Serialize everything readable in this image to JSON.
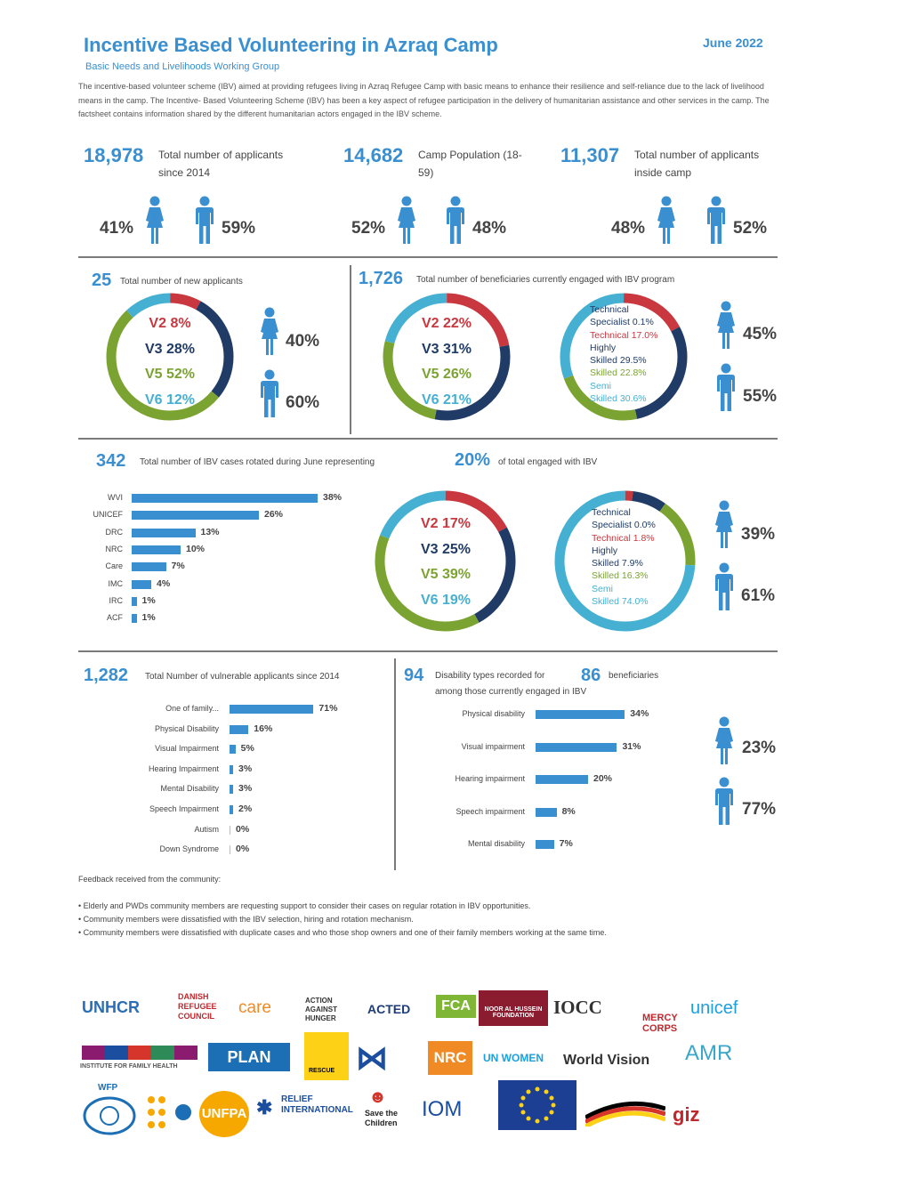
{
  "header": {
    "title": "Incentive Based Volunteering in Azraq Camp",
    "date": "June 2022",
    "subtitle": "Basic Needs and Livelihoods Working Group",
    "intro": "The incentive-based volunteer scheme (IBV) aimed at providing refugees living in Azraq Refugee Camp with basic means to enhance their resilience and self-reliance due to the lack of livelihood means in the camp. The Incentive- Based Volunteering Scheme (IBV) has been a key aspect of refugee participation in the delivery of humanitarian assistance and other services in the camp. The factsheet contains information shared by the different humanitarian actors engaged in the IBV scheme."
  },
  "stats": [
    {
      "value": "18,978",
      "label": "Total number of applicants since 2014",
      "female": "41%",
      "male": "59%"
    },
    {
      "value": "14,682",
      "label": "Camp Population (18-59)",
      "female": "52%",
      "male": "48%"
    },
    {
      "value": "11,307",
      "label": "Total number of applicants inside camp",
      "female": "48%",
      "male": "52%"
    }
  ],
  "new_applicants": {
    "value": "25",
    "label": "Total number of new applicants",
    "v2": "V2 8%",
    "v3": "V3 28%",
    "v5": "V5 52%",
    "v6": "V6 12%",
    "female": "40%",
    "male": "60%"
  },
  "beneficiaries": {
    "value": "1,726",
    "label": "Total number of beneficiaries currently engaged with IBV program",
    "v2": "V2 22%",
    "v3": "V3 31%",
    "v5": "V5 26%",
    "v6": "V6 21%",
    "skills": [
      "Technical",
      "Specialist 0.1%",
      "Technical 17.0%",
      "Highly",
      "Skilled 29.5%",
      "Skilled 22.8%",
      "Semi",
      "Skilled 30.6%"
    ],
    "female": "45%",
    "male": "55%"
  },
  "rotated": {
    "value": "342",
    "label": "Total number of IBV cases rotated during June representing",
    "pct": "20%",
    "pct_label": "of total engaged with IBV",
    "v2": "V2 17%",
    "v3": "V3 25%",
    "v5": "V5 39%",
    "v6": "V6 19%",
    "skills": [
      "Technical",
      "Specialist 0.0%",
      "Technical 1.8%",
      "Highly",
      "Skilled 7.9%",
      "Skilled 16.3%",
      "Semi",
      "Skilled 74.0%"
    ],
    "female": "39%",
    "male": "61%",
    "bars": [
      {
        "label": "WVI",
        "value": 38,
        "text": "38%"
      },
      {
        "label": "UNICEF",
        "value": 26,
        "text": "26%"
      },
      {
        "label": "DRC",
        "value": 13,
        "text": "13%"
      },
      {
        "label": "NRC",
        "value": 10,
        "text": "10%"
      },
      {
        "label": "Care",
        "value": 7,
        "text": "7%"
      },
      {
        "label": "IMC",
        "value": 4,
        "text": "4%"
      },
      {
        "label": "IRC",
        "value": 1,
        "text": "1%"
      },
      {
        "label": "ACF",
        "value": 1,
        "text": "1%"
      }
    ]
  },
  "vulnerable": {
    "value": "1,282",
    "label": "Total Number of vulnerable applicants since 2014",
    "bars": [
      {
        "label": "One of family...",
        "value": 71,
        "text": "71%"
      },
      {
        "label": "Physical Disability",
        "value": 16,
        "text": "16%"
      },
      {
        "label": "Visual Impairment",
        "value": 5,
        "text": "5%"
      },
      {
        "label": "Hearing Impairment",
        "value": 3,
        "text": "3%"
      },
      {
        "label": "Mental Disability",
        "value": 3,
        "text": "3%"
      },
      {
        "label": "Speech Impairment",
        "value": 2,
        "text": "2%"
      },
      {
        "label": "Autism",
        "value": 0,
        "text": "0%"
      },
      {
        "label": "Down Syndrome",
        "value": 0,
        "text": "0%"
      }
    ]
  },
  "disability": {
    "value": "94",
    "label": "Disability types recorded for",
    "value2": "86",
    "label2": "beneficiaries",
    "label3": "among those currently engaged in IBV",
    "female": "23%",
    "male": "77%",
    "bars": [
      {
        "label": "Physical disability",
        "value": 34,
        "text": "34%"
      },
      {
        "label": "Visual impairment",
        "value": 31,
        "text": "31%"
      },
      {
        "label": "Hearing impairment",
        "value": 20,
        "text": "20%"
      },
      {
        "label": "Speech impairment",
        "value": 8,
        "text": "8%"
      },
      {
        "label": "Mental disability",
        "value": 7,
        "text": "7%"
      }
    ]
  },
  "feedback": {
    "title": "Feedback received from the community:",
    "items": [
      "• Elderly and PWDs community members are requesting support to consider their cases on regular rotation in IBV opportunities.",
      "• Community members were dissatisfied with the IBV selection, hiring and rotation mechanism.",
      "• Community members were dissatisfied with duplicate cases and who those shop owners and one of their family members working at the same time."
    ]
  },
  "logos": [
    "UNHCR",
    "DANISH REFUGEE COUNCIL",
    "care",
    "ACTION AGAINST HUNGER",
    "ACTED",
    "FCA",
    "NOOR AL HUSSEIN FOUNDATION",
    "IOCC",
    "MERCY CORPS",
    "unicef",
    "INSTITUTE FOR FAMILY HEALTH",
    "PLAN",
    "RESCUE",
    "NRC",
    "UN WOMEN",
    "World Vision",
    "AMR",
    "WFP",
    "UNFPA",
    "RELIEF INTERNATIONAL",
    "Save the Children",
    "IOM",
    "giz"
  ],
  "colors": {
    "accent": "#3a8fd0",
    "v2": "#c9373f",
    "v3": "#1f3b66",
    "v5": "#7ba331",
    "v6": "#45b0d1"
  }
}
